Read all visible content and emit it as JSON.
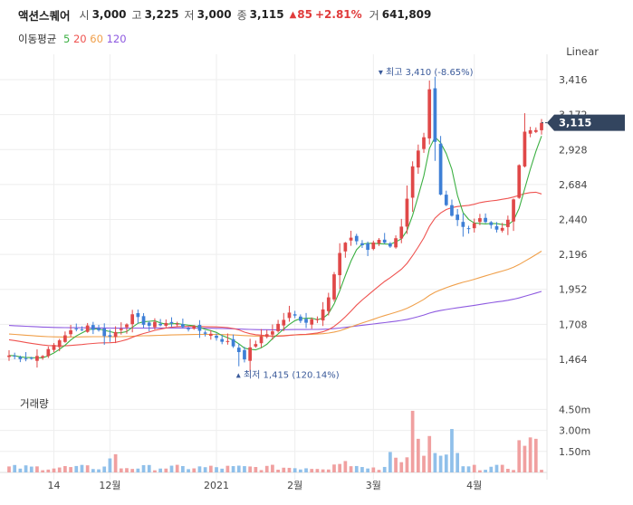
{
  "header": {
    "name": "액션스퀘어",
    "open_label": "시",
    "open": "3,000",
    "high_label": "고",
    "high": "3,225",
    "low_label": "저",
    "low": "3,000",
    "close_label": "종",
    "close": "3,115",
    "up_arrow": "▲",
    "change": "85",
    "change_pct": "+2.81%",
    "volume_label": "거",
    "volume": "641,809"
  },
  "ma_legend": {
    "title": "이동평균",
    "items": [
      {
        "label": "5",
        "color": "#3cb043"
      },
      {
        "label": "20",
        "color": "#ef5350"
      },
      {
        "label": "60",
        "color": "#f0a04b"
      },
      {
        "label": "120",
        "color": "#8e5ae0"
      }
    ]
  },
  "scale_mode": "Linear",
  "volume_title": "거래량",
  "colors": {
    "up": "#e04848",
    "down": "#3e7fd6",
    "up_vol": "#f0a0a0",
    "down_vol": "#90c0ea",
    "current": "#33455f"
  },
  "chart_data": {
    "type": "candlestick",
    "y_ticks": [
      "3,416",
      "3,172",
      "2,928",
      "2,684",
      "2,440",
      "2,196",
      "1,952",
      "1,708",
      "1,464"
    ],
    "ylim": [
      1350,
      3530
    ],
    "vol_ticks": [
      "4.50m",
      "3.00m",
      "1.50m"
    ],
    "vol_max": 5300000,
    "x_labels": [
      {
        "label": "14",
        "index": 8
      },
      {
        "label": "12월",
        "index": 18
      },
      {
        "label": "2021",
        "index": 37
      },
      {
        "label": "2월",
        "index": 51
      },
      {
        "label": "3월",
        "index": 65
      },
      {
        "label": "4월",
        "index": 83
      }
    ],
    "current_price": "3,115",
    "current_value": 3115,
    "max_annotation": {
      "text": "최고 3,410 (-8.65%)",
      "index": 75,
      "value": 3410
    },
    "min_annotation": {
      "text": "최저 1,415 (120.14%)",
      "index": 41,
      "value": 1415
    },
    "candles": [],
    "volume": []
  }
}
